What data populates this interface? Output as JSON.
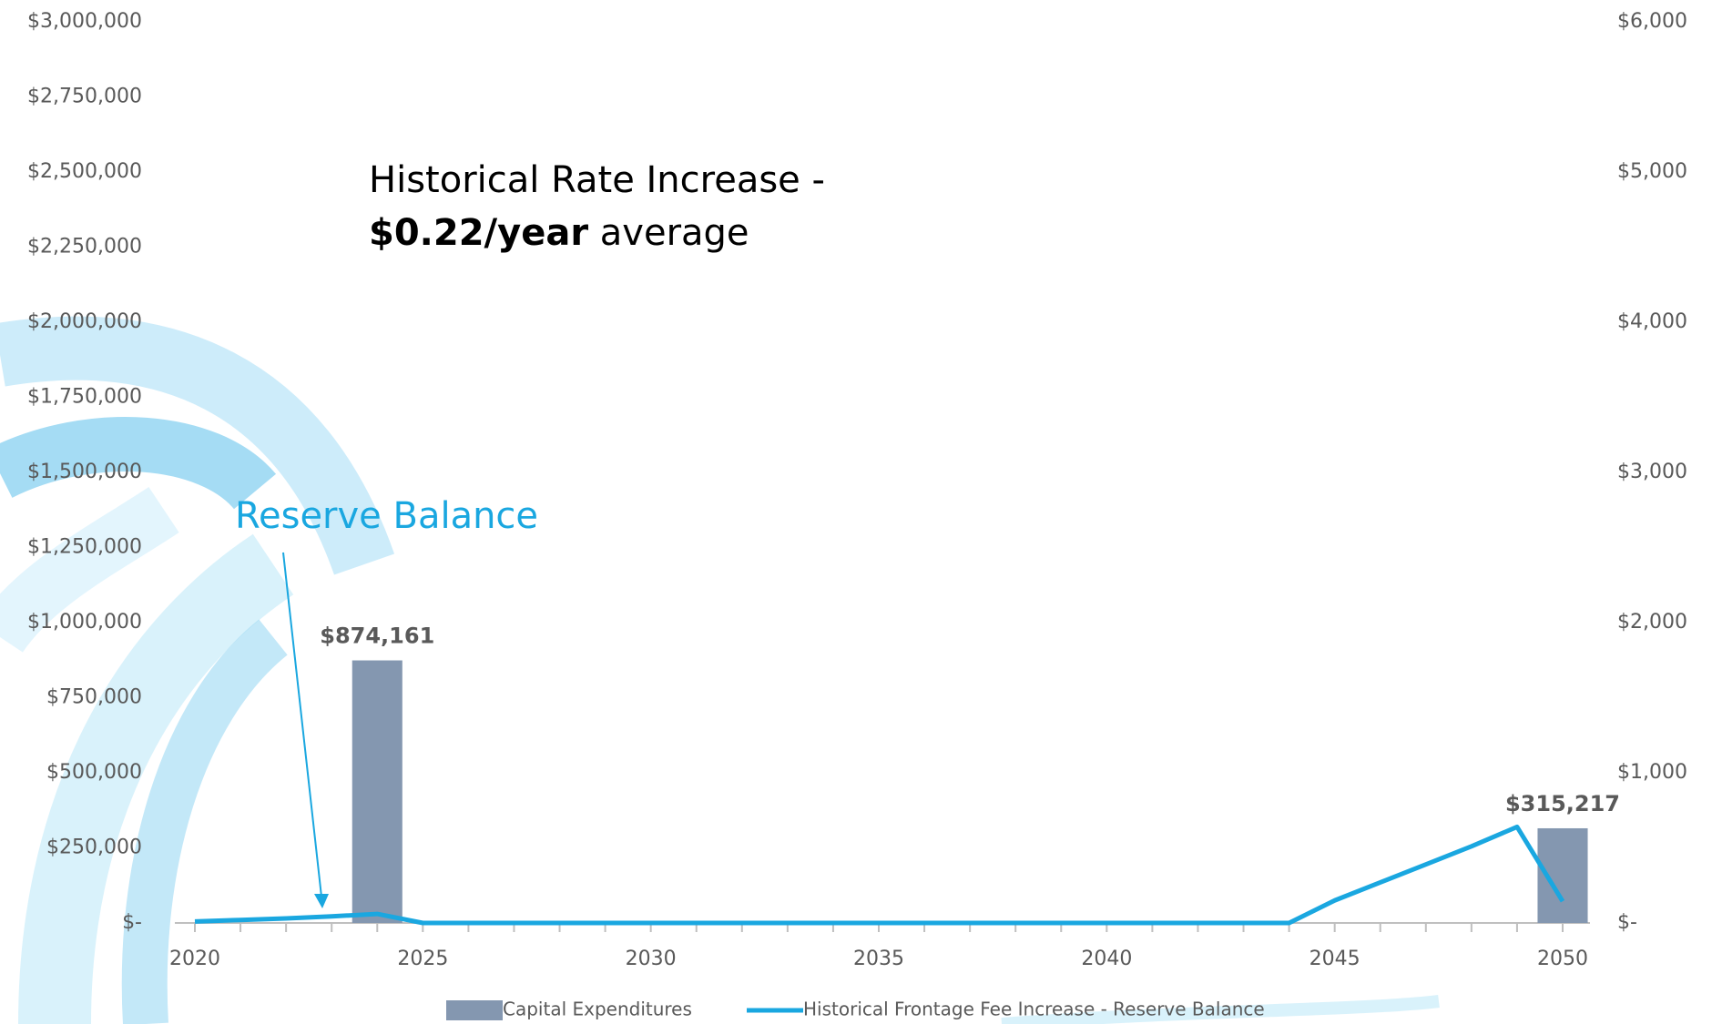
{
  "chart_data": {
    "type": "bar_line",
    "annotation": {
      "line1": "Historical Rate Increase -",
      "bold": "$0.22/year",
      "rest": "average"
    },
    "arrow_label": "Reserve Balance",
    "categories": [
      "2020",
      null,
      null,
      null,
      null,
      "2025",
      null,
      null,
      null,
      null,
      "2030",
      null,
      null,
      null,
      null,
      "2035",
      null,
      null,
      null,
      null,
      "2040",
      null,
      null,
      null,
      null,
      "2045",
      null,
      null,
      null,
      null,
      "2050"
    ],
    "series": [
      {
        "name": "Capital Expenditures",
        "type": "bar",
        "color": "#8497b0",
        "values": [
          null,
          null,
          null,
          null,
          874161,
          null,
          null,
          null,
          null,
          null,
          null,
          null,
          null,
          null,
          null,
          null,
          null,
          null,
          null,
          null,
          null,
          null,
          null,
          null,
          null,
          null,
          null,
          null,
          null,
          null,
          315217
        ],
        "value_labels": [
          null,
          null,
          null,
          null,
          "$874,161",
          null,
          null,
          null,
          null,
          null,
          null,
          null,
          null,
          null,
          null,
          null,
          null,
          null,
          null,
          null,
          null,
          null,
          null,
          null,
          null,
          null,
          null,
          null,
          null,
          null,
          "$315,217"
        ]
      },
      {
        "name": "Historical Frontage Fee Increase - Reserve Balance",
        "type": "line",
        "color": "#1aa7e0",
        "values": [
          5000,
          10000,
          15000,
          22000,
          30000,
          0,
          0,
          0,
          0,
          0,
          0,
          0,
          0,
          0,
          0,
          0,
          0,
          0,
          0,
          0,
          0,
          0,
          0,
          0,
          0,
          75000,
          135000,
          195000,
          255000,
          320000,
          72000
        ]
      }
    ],
    "ylim": [
      0,
      3000000
    ],
    "yticks": [
      {
        "value": 0,
        "label": "$-"
      },
      {
        "value": 250000,
        "label": "$250,000"
      },
      {
        "value": 500000,
        "label": "$500,000"
      },
      {
        "value": 750000,
        "label": "$750,000"
      },
      {
        "value": 1000000,
        "label": "$1,000,000"
      },
      {
        "value": 1250000,
        "label": "$1,250,000"
      },
      {
        "value": 1500000,
        "label": "$1,500,000"
      },
      {
        "value": 1750000,
        "label": "$1,750,000"
      },
      {
        "value": 2000000,
        "label": "$2,000,000"
      },
      {
        "value": 2250000,
        "label": "$2,250,000"
      },
      {
        "value": 2500000,
        "label": "$2,500,000"
      },
      {
        "value": 2750000,
        "label": "$2,750,000"
      },
      {
        "value": 3000000,
        "label": "$3,000,000"
      }
    ],
    "y2lim": [
      0,
      6000
    ],
    "y2ticks": [
      {
        "value": 0,
        "label": "$-"
      },
      {
        "value": 1000,
        "label": "$1,000"
      },
      {
        "value": 2000,
        "label": "$2,000"
      },
      {
        "value": 3000,
        "label": "$3,000"
      },
      {
        "value": 4000,
        "label": "$4,000"
      },
      {
        "value": 5000,
        "label": "$5,000"
      },
      {
        "value": 6000,
        "label": "$6,000"
      }
    ],
    "grid": false,
    "legend": "bottom"
  }
}
